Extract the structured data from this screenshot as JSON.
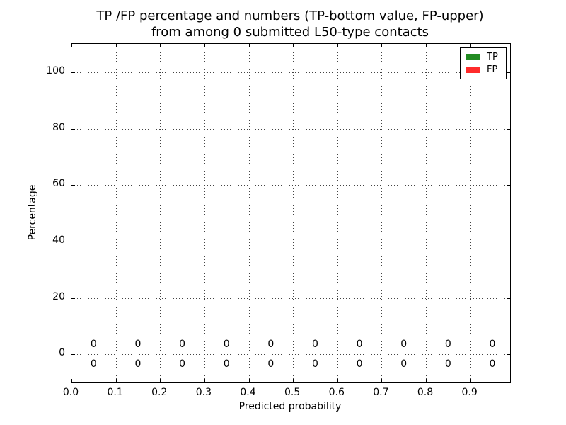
{
  "chart_data": {
    "type": "bar",
    "title_lines": [
      "TP /FP percentage and numbers (TP-bottom value, FP-upper)",
      "from among 0 submitted L50-type contacts"
    ],
    "xlabel": "Predicted probability",
    "ylabel": "Percentage",
    "xlim": [
      0,
      0.99
    ],
    "ylim": [
      -10,
      110
    ],
    "xtick_values": [
      0.0,
      0.1,
      0.2,
      0.3,
      0.4,
      0.5,
      0.6,
      0.7,
      0.8,
      0.9
    ],
    "xtick_labels": [
      "0.0",
      "0.1",
      "0.2",
      "0.3",
      "0.4",
      "0.5",
      "0.6",
      "0.7",
      "0.8",
      "0.9"
    ],
    "ytick_values": [
      0,
      20,
      40,
      60,
      80,
      100
    ],
    "ytick_labels": [
      "0",
      "20",
      "40",
      "60",
      "80",
      "100"
    ],
    "grid": true,
    "grid_linestyle": "dotted",
    "legend_position": "upper right",
    "bin_centers": [
      0.05,
      0.15,
      0.25,
      0.35,
      0.45,
      0.55,
      0.65,
      0.75,
      0.85,
      0.95
    ],
    "series": [
      {
        "name": "TP",
        "color": "#228B22",
        "values": [
          0,
          0,
          0,
          0,
          0,
          0,
          0,
          0,
          0,
          0
        ],
        "annotation_y": -3.5
      },
      {
        "name": "FP",
        "color": "#FF2B2B",
        "values": [
          0,
          0,
          0,
          0,
          0,
          0,
          0,
          0,
          0,
          0
        ],
        "annotation_y": 3.5
      }
    ]
  }
}
